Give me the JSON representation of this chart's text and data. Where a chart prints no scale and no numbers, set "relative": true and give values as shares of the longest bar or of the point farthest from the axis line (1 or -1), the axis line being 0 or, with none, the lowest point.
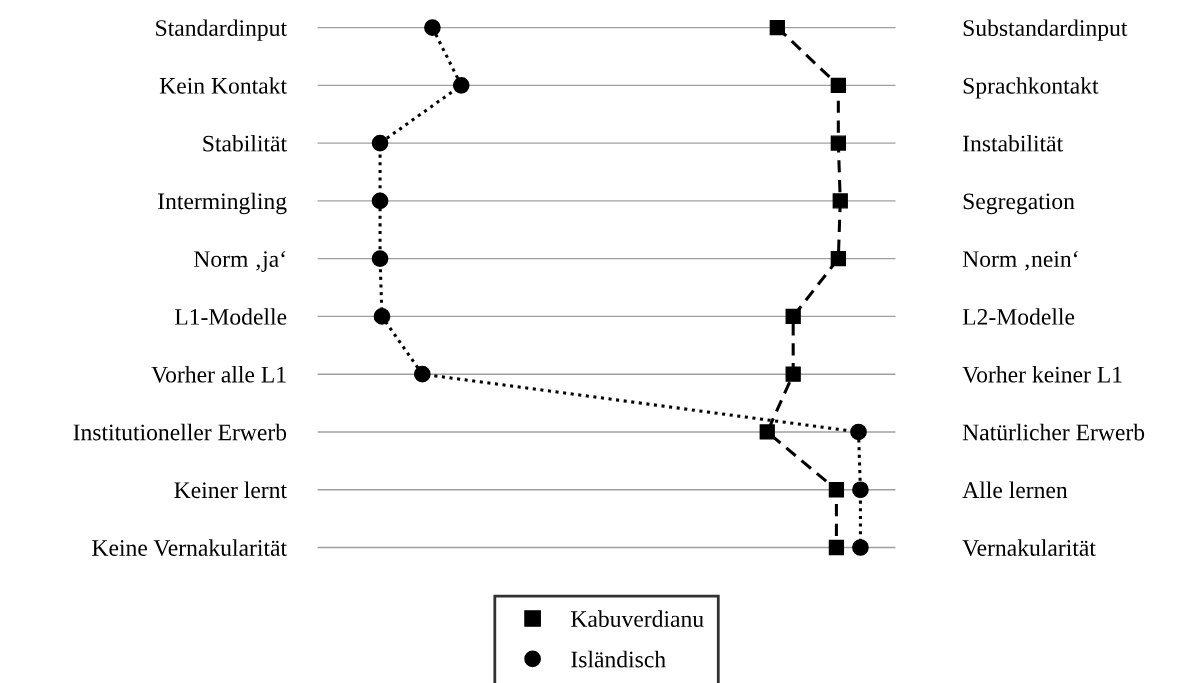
{
  "chart_data": {
    "type": "line",
    "orientation": "horizontal",
    "relative": true,
    "categories": [
      "Standardinput",
      "Kein Kontakt",
      "Stabilität",
      "Intermingling",
      "Norm ‚ja‘",
      "L1-Modelle",
      "Vorher alle L1",
      "Institutioneller Erwerb",
      "Keiner lernt",
      "Keine Vernakularität"
    ],
    "y2_categories": [
      "Substandardinput",
      "Sprachkontakt",
      "Instabilität",
      "Segregation",
      "Norm ‚nein‘",
      "L2-Modelle",
      "Vorher keiner L1",
      "Natürlicher Erwerb",
      "Alle lernen",
      "Vernakularität"
    ],
    "series": [
      {
        "name": "Kabuverdianu",
        "color": "#000000",
        "marker": "square",
        "line_style": "dashed",
        "values": [
          0.827,
          0.954,
          0.954,
          0.958,
          0.954,
          0.86,
          0.86,
          0.806,
          0.95,
          0.95
        ]
      },
      {
        "name": "Isländisch",
        "color": "#000000",
        "marker": "circle",
        "line_style": "dotted",
        "values": [
          0.109,
          0.169,
          0,
          0,
          0,
          0.004,
          0.088,
          0.996,
          1,
          1
        ]
      }
    ],
    "grid": "y",
    "legend": "bottom"
  }
}
